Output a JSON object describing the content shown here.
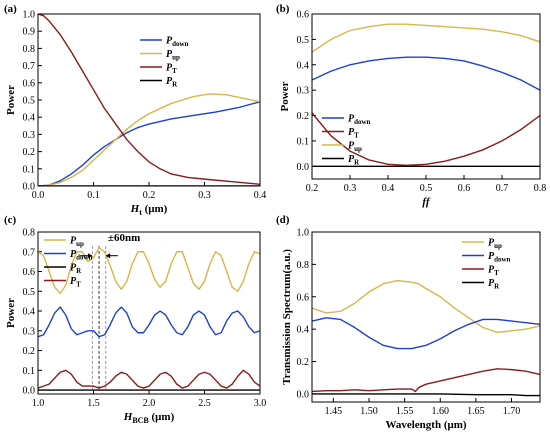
{
  "chart_data": [
    {
      "panel_label": "(a)",
      "type": "line",
      "xlabel": "H_t (μm)",
      "xlabel_main": "H",
      "xlabel_sub": "t",
      "xlabel_unit": " (μm)",
      "ylabel": "Power",
      "xlim": [
        0,
        0.4
      ],
      "ylim": [
        0,
        1.0
      ],
      "xticks": [
        "0.0",
        "0.1",
        "0.2",
        "0.3",
        "0.4"
      ],
      "yticks": [
        "0.0",
        "0.1",
        "0.2",
        "0.3",
        "0.4",
        "0.5",
        "0.6",
        "0.7",
        "0.8",
        "0.9",
        "1.0"
      ],
      "legend_position": "right",
      "series": [
        {
          "name": "P_down",
          "name_main": "P",
          "name_sub": "down",
          "color": "#1f3fd1",
          "x": [
            0,
            0.02,
            0.04,
            0.06,
            0.08,
            0.1,
            0.12,
            0.14,
            0.16,
            0.18,
            0.2,
            0.24,
            0.28,
            0.32,
            0.36,
            0.4
          ],
          "y": [
            0.0,
            0.005,
            0.03,
            0.07,
            0.12,
            0.18,
            0.23,
            0.27,
            0.31,
            0.34,
            0.36,
            0.39,
            0.41,
            0.43,
            0.455,
            0.49
          ]
        },
        {
          "name": "P_up",
          "name_main": "P",
          "name_sub": "up",
          "color": "#d4b84a",
          "x": [
            0,
            0.02,
            0.04,
            0.06,
            0.08,
            0.1,
            0.12,
            0.14,
            0.16,
            0.18,
            0.2,
            0.24,
            0.28,
            0.31,
            0.34,
            0.37,
            0.4
          ],
          "y": [
            0.0,
            0.005,
            0.02,
            0.05,
            0.09,
            0.15,
            0.21,
            0.27,
            0.33,
            0.38,
            0.42,
            0.48,
            0.52,
            0.535,
            0.53,
            0.51,
            0.49
          ]
        },
        {
          "name": "P_T",
          "name_main": "P",
          "name_sub": "T",
          "color": "#8b1a1a",
          "x": [
            0,
            0.01,
            0.02,
            0.04,
            0.06,
            0.08,
            0.1,
            0.12,
            0.14,
            0.16,
            0.18,
            0.2,
            0.22,
            0.24,
            0.27,
            0.3,
            0.35,
            0.4
          ],
          "y": [
            1.0,
            0.99,
            0.96,
            0.88,
            0.78,
            0.67,
            0.56,
            0.45,
            0.36,
            0.27,
            0.2,
            0.14,
            0.1,
            0.07,
            0.05,
            0.04,
            0.025,
            0.01
          ]
        },
        {
          "name": "P_R",
          "name_main": "P",
          "name_sub": "R",
          "color": "#000000",
          "x": [
            0,
            0.4
          ],
          "y": [
            0.0,
            0.0
          ]
        }
      ]
    },
    {
      "panel_label": "(b)",
      "type": "line",
      "xlabel": "ff",
      "xlabel_main": "ff",
      "xlabel_sub": "",
      "xlabel_unit": "",
      "ylabel": "Power",
      "xlim": [
        0.2,
        0.8
      ],
      "ylim": [
        -0.05,
        0.6
      ],
      "xticks": [
        "0.2",
        "0.3",
        "0.4",
        "0.5",
        "0.6",
        "0.7",
        "0.8"
      ],
      "yticks": [
        "0.0",
        "0.1",
        "0.2",
        "0.3",
        "0.4",
        "0.5",
        "0.6"
      ],
      "legend_position": "lower-left",
      "series": [
        {
          "name": "P_down",
          "name_main": "P",
          "name_sub": "down",
          "color": "#1f3fd1",
          "x": [
            0.2,
            0.25,
            0.3,
            0.35,
            0.4,
            0.45,
            0.5,
            0.55,
            0.6,
            0.65,
            0.7,
            0.75,
            0.8
          ],
          "y": [
            0.34,
            0.375,
            0.4,
            0.415,
            0.425,
            0.43,
            0.43,
            0.425,
            0.415,
            0.395,
            0.37,
            0.34,
            0.3
          ]
        },
        {
          "name": "P_T",
          "name_main": "P",
          "name_sub": "T",
          "color": "#8b1a1a",
          "x": [
            0.2,
            0.25,
            0.3,
            0.35,
            0.4,
            0.45,
            0.5,
            0.55,
            0.6,
            0.65,
            0.7,
            0.75,
            0.8
          ],
          "y": [
            0.21,
            0.12,
            0.06,
            0.025,
            0.008,
            0.004,
            0.008,
            0.02,
            0.04,
            0.065,
            0.1,
            0.145,
            0.2
          ]
        },
        {
          "name": "P_up",
          "name_main": "P",
          "name_sub": "up",
          "color": "#d4b84a",
          "x": [
            0.2,
            0.25,
            0.3,
            0.35,
            0.4,
            0.45,
            0.5,
            0.55,
            0.6,
            0.65,
            0.7,
            0.75,
            0.8
          ],
          "y": [
            0.45,
            0.5,
            0.535,
            0.55,
            0.56,
            0.56,
            0.555,
            0.55,
            0.545,
            0.54,
            0.53,
            0.515,
            0.49
          ]
        },
        {
          "name": "P_R",
          "name_main": "P",
          "name_sub": "R",
          "color": "#000000",
          "x": [
            0.2,
            0.8
          ],
          "y": [
            0.0,
            0.0
          ]
        }
      ]
    },
    {
      "panel_label": "(c)",
      "type": "line",
      "xlabel": "H_BCB (μm)",
      "xlabel_main": "H",
      "xlabel_sub": "BCB",
      "xlabel_unit": " (μm)",
      "ylabel": "Power",
      "xlim": [
        1.0,
        3.0
      ],
      "ylim": [
        -0.02,
        0.8
      ],
      "xticks": [
        "1.0",
        "1.5",
        "2.0",
        "2.5",
        "3.0"
      ],
      "yticks": [
        "0.0",
        "0.1",
        "0.2",
        "0.3",
        "0.4",
        "0.5",
        "0.6",
        "0.7",
        "0.8"
      ],
      "legend_position": "upper-left",
      "annotation": "±60nm",
      "series": [
        {
          "name": "P_up",
          "name_main": "P",
          "name_sub": "up",
          "color": "#d4b84a",
          "x": [
            1.0,
            1.05,
            1.1,
            1.15,
            1.2,
            1.25,
            1.3,
            1.35,
            1.4,
            1.45,
            1.5,
            1.55,
            1.6,
            1.65,
            1.7,
            1.75,
            1.8,
            1.85,
            1.9,
            1.95,
            2.0,
            2.05,
            2.1,
            2.15,
            2.2,
            2.25,
            2.3,
            2.35,
            2.4,
            2.45,
            2.5,
            2.55,
            2.6,
            2.65,
            2.7,
            2.75,
            2.8,
            2.85,
            2.9,
            2.95,
            3.0
          ],
          "y": [
            0.7,
            0.68,
            0.6,
            0.52,
            0.49,
            0.53,
            0.63,
            0.7,
            0.7,
            0.65,
            0.67,
            0.72,
            0.7,
            0.63,
            0.55,
            0.51,
            0.55,
            0.64,
            0.7,
            0.7,
            0.64,
            0.56,
            0.52,
            0.55,
            0.64,
            0.7,
            0.7,
            0.62,
            0.54,
            0.51,
            0.55,
            0.64,
            0.7,
            0.68,
            0.6,
            0.52,
            0.5,
            0.55,
            0.64,
            0.7,
            0.69
          ]
        },
        {
          "name": "P_down",
          "name_main": "P",
          "name_sub": "down",
          "color": "#1f3fd1",
          "x": [
            1.0,
            1.05,
            1.1,
            1.15,
            1.2,
            1.25,
            1.3,
            1.35,
            1.4,
            1.45,
            1.5,
            1.55,
            1.6,
            1.65,
            1.7,
            1.75,
            1.8,
            1.85,
            1.9,
            1.95,
            2.0,
            2.05,
            2.1,
            2.15,
            2.2,
            2.25,
            2.3,
            2.35,
            2.4,
            2.45,
            2.5,
            2.55,
            2.6,
            2.65,
            2.7,
            2.75,
            2.8,
            2.85,
            2.9,
            2.95,
            3.0
          ],
          "y": [
            0.27,
            0.28,
            0.33,
            0.39,
            0.42,
            0.38,
            0.31,
            0.28,
            0.29,
            0.3,
            0.3,
            0.27,
            0.28,
            0.33,
            0.39,
            0.42,
            0.39,
            0.32,
            0.29,
            0.29,
            0.33,
            0.38,
            0.4,
            0.38,
            0.33,
            0.29,
            0.28,
            0.32,
            0.38,
            0.4,
            0.38,
            0.32,
            0.28,
            0.29,
            0.35,
            0.39,
            0.4,
            0.37,
            0.32,
            0.29,
            0.3
          ]
        },
        {
          "name": "P_R",
          "name_main": "P",
          "name_sub": "R",
          "color": "#000000",
          "x": [
            1.0,
            3.0
          ],
          "y": [
            0.0,
            0.0
          ]
        },
        {
          "name": "P_T",
          "name_main": "P",
          "name_sub": "T",
          "color": "#8b1a1a",
          "x": [
            1.0,
            1.05,
            1.1,
            1.15,
            1.2,
            1.25,
            1.3,
            1.35,
            1.4,
            1.45,
            1.5,
            1.55,
            1.6,
            1.65,
            1.7,
            1.75,
            1.8,
            1.85,
            1.9,
            1.95,
            2.0,
            2.05,
            2.1,
            2.15,
            2.2,
            2.25,
            2.3,
            2.35,
            2.4,
            2.45,
            2.5,
            2.55,
            2.6,
            2.65,
            2.7,
            2.75,
            2.8,
            2.85,
            2.9,
            2.95,
            3.0
          ],
          "y": [
            0.01,
            0.02,
            0.03,
            0.06,
            0.09,
            0.1,
            0.08,
            0.04,
            0.02,
            0.02,
            0.02,
            0.01,
            0.02,
            0.04,
            0.07,
            0.09,
            0.08,
            0.05,
            0.02,
            0.01,
            0.02,
            0.05,
            0.08,
            0.09,
            0.07,
            0.03,
            0.01,
            0.02,
            0.05,
            0.08,
            0.09,
            0.08,
            0.05,
            0.02,
            0.01,
            0.03,
            0.07,
            0.1,
            0.08,
            0.04,
            0.02
          ]
        }
      ]
    },
    {
      "panel_label": "(d)",
      "type": "line",
      "xlabel": "Wavelength (μm)",
      "xlabel_main": "Wavelength (μm)",
      "xlabel_sub": "",
      "xlabel_unit": "",
      "ylabel": "Transmission Spectrum(a.u.)",
      "xlim": [
        1.42,
        1.74
      ],
      "ylim": [
        -0.05,
        1.0
      ],
      "xticks": [
        "1.45",
        "1.50",
        "1.55",
        "1.60",
        "1.65",
        "1.70"
      ],
      "xtick_values": [
        1.45,
        1.5,
        1.55,
        1.6,
        1.65,
        1.7
      ],
      "yticks": [
        "0.0",
        "0.2",
        "0.4",
        "0.6",
        "0.8",
        "1.0"
      ],
      "legend_position": "upper-right",
      "series": [
        {
          "name": "P_up",
          "name_main": "P",
          "name_sub": "up",
          "color": "#d4b84a",
          "x": [
            1.42,
            1.44,
            1.46,
            1.48,
            1.5,
            1.52,
            1.54,
            1.56,
            1.57,
            1.58,
            1.6,
            1.62,
            1.64,
            1.66,
            1.68,
            1.7,
            1.72,
            1.74
          ],
          "y": [
            0.53,
            0.5,
            0.51,
            0.56,
            0.63,
            0.68,
            0.7,
            0.69,
            0.68,
            0.65,
            0.6,
            0.53,
            0.47,
            0.41,
            0.38,
            0.39,
            0.4,
            0.42
          ]
        },
        {
          "name": "P_down",
          "name_main": "P",
          "name_sub": "down",
          "color": "#1f3fd1",
          "x": [
            1.42,
            1.44,
            1.46,
            1.48,
            1.5,
            1.52,
            1.54,
            1.56,
            1.57,
            1.58,
            1.6,
            1.62,
            1.64,
            1.66,
            1.68,
            1.7,
            1.72,
            1.74
          ],
          "y": [
            0.45,
            0.47,
            0.46,
            0.41,
            0.35,
            0.3,
            0.28,
            0.28,
            0.29,
            0.3,
            0.34,
            0.39,
            0.43,
            0.46,
            0.46,
            0.45,
            0.44,
            0.43
          ]
        },
        {
          "name": "P_T",
          "name_main": "P",
          "name_sub": "T",
          "color": "#8b1a1a",
          "x": [
            1.42,
            1.44,
            1.46,
            1.48,
            1.5,
            1.52,
            1.54,
            1.56,
            1.565,
            1.57,
            1.58,
            1.6,
            1.62,
            1.64,
            1.66,
            1.68,
            1.7,
            1.72,
            1.74
          ],
          "y": [
            0.015,
            0.02,
            0.02,
            0.025,
            0.02,
            0.025,
            0.03,
            0.03,
            0.015,
            0.04,
            0.06,
            0.08,
            0.1,
            0.12,
            0.14,
            0.155,
            0.15,
            0.14,
            0.12
          ]
        },
        {
          "name": "P_R",
          "name_main": "P",
          "name_sub": "R",
          "color": "#000000",
          "x": [
            1.42,
            1.5,
            1.6,
            1.65,
            1.7,
            1.72,
            1.74
          ],
          "y": [
            0.0,
            0.0,
            0.0,
            -0.005,
            -0.005,
            -0.01,
            -0.01
          ]
        }
      ]
    }
  ]
}
